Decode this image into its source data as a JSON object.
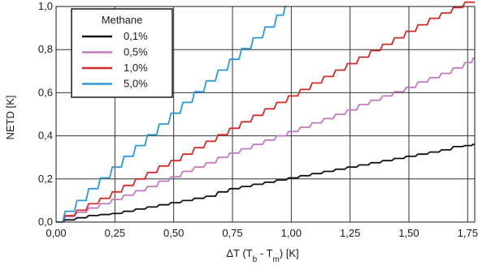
{
  "chart_data": {
    "type": "line",
    "xlabel": "ΔT (T",
    "xlabel_sub1": "b",
    "xlabel_mid": " - T",
    "xlabel_sub2": "m",
    "xlabel_end": ") [K]",
    "ylabel": "NETD [K]",
    "xlim": [
      0,
      1.78
    ],
    "ylim": [
      0,
      1.0
    ],
    "grid": true,
    "x_ticks": [
      "0,00",
      "0,25",
      "0,50",
      "0,75",
      "1,00",
      "1,25",
      "1,50",
      "1,75"
    ],
    "x_tick_values": [
      0,
      0.25,
      0.5,
      0.75,
      1.0,
      1.25,
      1.5,
      1.75
    ],
    "y_ticks": [
      "0,0",
      "0,2",
      "0,4",
      "0,6",
      "0,8",
      "1,0"
    ],
    "y_tick_values": [
      0,
      0.2,
      0.4,
      0.6,
      0.8,
      1.0
    ],
    "legend": {
      "title": "Methane",
      "placement": "top-left",
      "entries": [
        "0,1%",
        "0,5%",
        "1,0%",
        "5,0%"
      ]
    },
    "series": [
      {
        "name": "0,1%",
        "color": "#111111",
        "x": [
          0,
          0.05,
          0.1,
          0.15,
          0.2,
          0.25,
          0.3,
          0.35,
          0.4,
          0.45,
          0.5,
          0.55,
          0.6,
          0.65,
          0.7,
          0.75,
          0.8,
          0.85,
          0.9,
          0.95,
          1.0,
          1.05,
          1.1,
          1.15,
          1.2,
          1.25,
          1.3,
          1.35,
          1.4,
          1.45,
          1.5,
          1.55,
          1.6,
          1.65,
          1.7,
          1.75,
          1.78
        ],
        "y": [
          0.0,
          0.01,
          0.02,
          0.03,
          0.035,
          0.04,
          0.05,
          0.06,
          0.07,
          0.08,
          0.09,
          0.1,
          0.11,
          0.12,
          0.14,
          0.155,
          0.165,
          0.175,
          0.185,
          0.195,
          0.205,
          0.215,
          0.225,
          0.235,
          0.245,
          0.255,
          0.265,
          0.275,
          0.285,
          0.295,
          0.305,
          0.315,
          0.325,
          0.335,
          0.35,
          0.355,
          0.36
        ]
      },
      {
        "name": "0,5%",
        "color": "#c27ac0",
        "x": [
          0,
          0.05,
          0.1,
          0.15,
          0.2,
          0.25,
          0.3,
          0.35,
          0.4,
          0.45,
          0.5,
          0.55,
          0.6,
          0.65,
          0.7,
          0.75,
          0.8,
          0.85,
          0.9,
          0.95,
          1.0,
          1.05,
          1.1,
          1.15,
          1.2,
          1.25,
          1.3,
          1.35,
          1.4,
          1.45,
          1.5,
          1.55,
          1.6,
          1.65,
          1.7,
          1.75,
          1.78
        ],
        "y": [
          0.0,
          0.025,
          0.045,
          0.065,
          0.085,
          0.105,
          0.125,
          0.145,
          0.165,
          0.19,
          0.21,
          0.235,
          0.255,
          0.275,
          0.3,
          0.32,
          0.34,
          0.36,
          0.38,
          0.4,
          0.42,
          0.44,
          0.46,
          0.48,
          0.5,
          0.52,
          0.545,
          0.565,
          0.585,
          0.605,
          0.625,
          0.65,
          0.67,
          0.69,
          0.715,
          0.74,
          0.76
        ]
      },
      {
        "name": "1,0%",
        "color": "#d42a2a",
        "x": [
          0,
          0.05,
          0.1,
          0.15,
          0.2,
          0.25,
          0.3,
          0.35,
          0.4,
          0.45,
          0.5,
          0.55,
          0.6,
          0.65,
          0.7,
          0.75,
          0.8,
          0.85,
          0.9,
          0.95,
          1.0,
          1.05,
          1.1,
          1.15,
          1.2,
          1.25,
          1.3,
          1.35,
          1.4,
          1.45,
          1.5,
          1.55,
          1.6,
          1.65,
          1.7,
          1.75,
          1.78
        ],
        "y": [
          0.0,
          0.03,
          0.055,
          0.085,
          0.11,
          0.14,
          0.17,
          0.2,
          0.23,
          0.26,
          0.285,
          0.315,
          0.345,
          0.375,
          0.405,
          0.435,
          0.465,
          0.495,
          0.525,
          0.555,
          0.585,
          0.615,
          0.645,
          0.675,
          0.705,
          0.735,
          0.765,
          0.795,
          0.825,
          0.855,
          0.885,
          0.915,
          0.945,
          0.97,
          0.995,
          1.02,
          1.02
        ]
      },
      {
        "name": "5,0%",
        "color": "#2a9ad6",
        "x": [
          0,
          0.05,
          0.1,
          0.15,
          0.2,
          0.25,
          0.3,
          0.35,
          0.4,
          0.45,
          0.5,
          0.55,
          0.6,
          0.65,
          0.7,
          0.75,
          0.8,
          0.85,
          0.9,
          0.95,
          0.98
        ],
        "y": [
          0.0,
          0.05,
          0.1,
          0.155,
          0.205,
          0.255,
          0.305,
          0.355,
          0.405,
          0.455,
          0.505,
          0.555,
          0.605,
          0.655,
          0.705,
          0.755,
          0.805,
          0.855,
          0.905,
          0.96,
          1.0
        ]
      }
    ]
  }
}
